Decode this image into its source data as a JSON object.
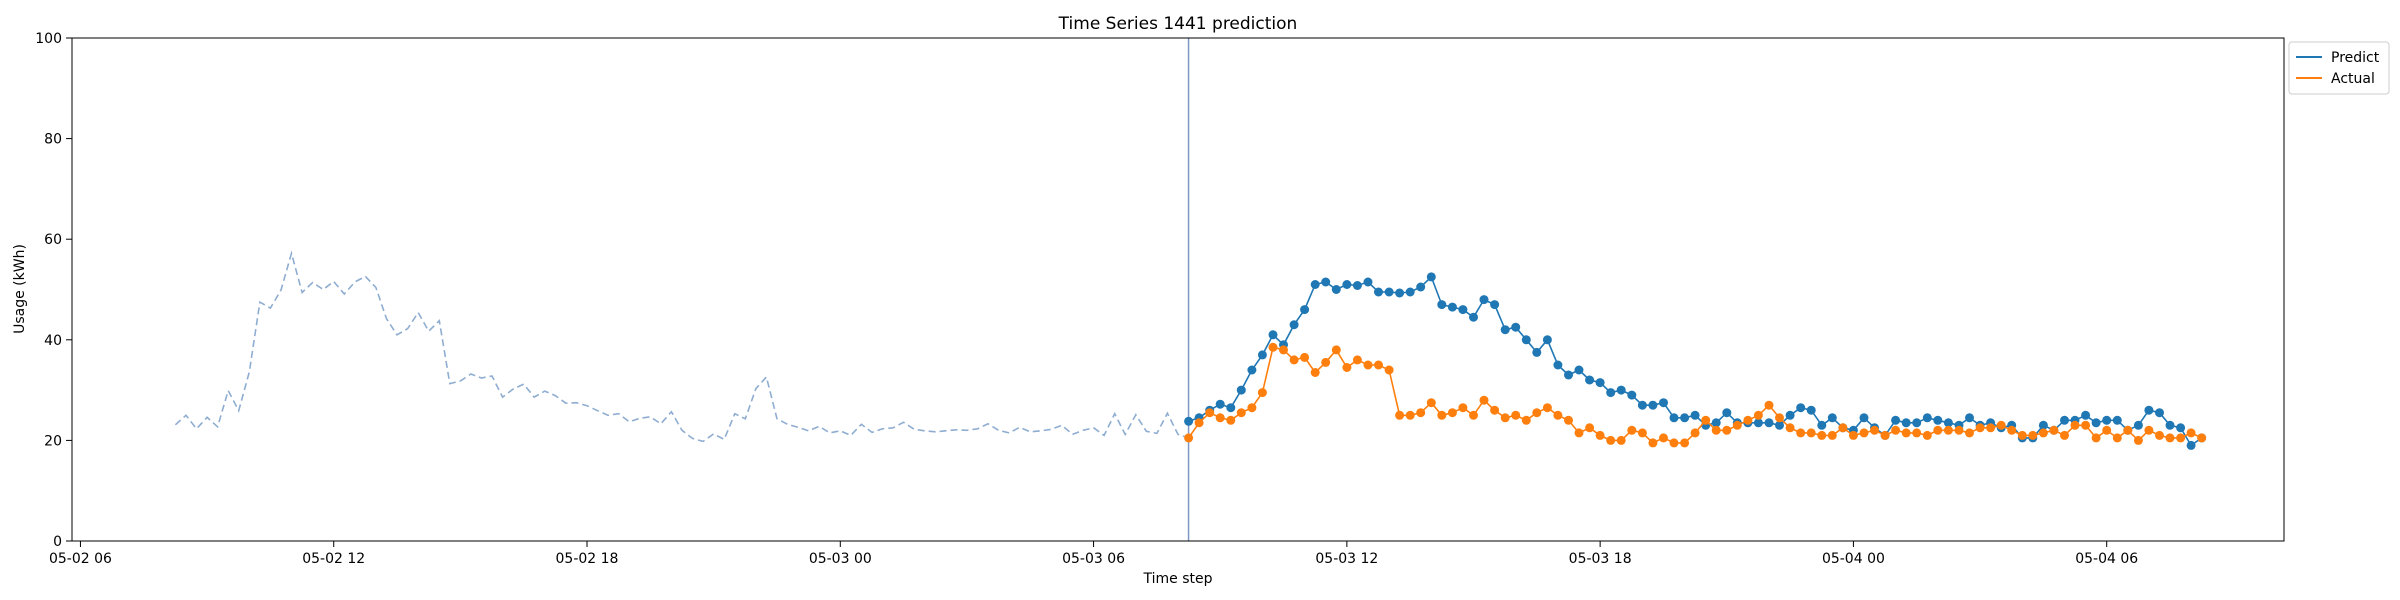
{
  "chart_data": {
    "type": "line",
    "title": "Time Series 1441 prediction",
    "xlabel": "Time step",
    "ylabel": "Usage (kWh)",
    "ylim": [
      0,
      100
    ],
    "xlim": [
      "2025-05-02 05:48",
      "2025-05-04 10:12"
    ],
    "x_ticks": [
      {
        "t": "2025-05-02 06:00",
        "label": "05-02 06"
      },
      {
        "t": "2025-05-02 12:00",
        "label": "05-02 12"
      },
      {
        "t": "2025-05-02 18:00",
        "label": "05-02 18"
      },
      {
        "t": "2025-05-03 00:00",
        "label": "05-03 00"
      },
      {
        "t": "2025-05-03 06:00",
        "label": "05-03 06"
      },
      {
        "t": "2025-05-03 12:00",
        "label": "05-03 12"
      },
      {
        "t": "2025-05-03 18:00",
        "label": "05-03 18"
      },
      {
        "t": "2025-05-04 00:00",
        "label": "05-04 00"
      },
      {
        "t": "2025-05-04 06:00",
        "label": "05-04 06"
      }
    ],
    "y_ticks": [
      0,
      20,
      40,
      60,
      80,
      100
    ],
    "legend_position": "top-right",
    "forecast_start": "2025-05-03 08:15",
    "series": [
      {
        "name": "",
        "style": "dashed",
        "color": "#8fadd1",
        "start": "2025-05-02 08:15",
        "step_minutes": 15,
        "values": [
          23.1,
          25.0,
          22.3,
          24.6,
          22.7,
          29.9,
          25.9,
          33.6,
          47.5,
          46.3,
          49.9,
          57.2,
          49.4,
          51.4,
          50.0,
          51.6,
          49.1,
          51.5,
          52.6,
          50.4,
          44.2,
          41.0,
          42.2,
          45.4,
          41.7,
          43.8,
          31.3,
          31.8,
          33.2,
          32.4,
          32.8,
          28.6,
          30.2,
          31.2,
          28.6,
          29.8,
          28.9,
          27.4,
          27.5,
          26.9,
          25.9,
          25.0,
          25.3,
          23.7,
          24.4,
          24.7,
          23.3,
          25.7,
          22.0,
          20.4,
          19.8,
          21.3,
          20.2,
          25.3,
          24.3,
          30.3,
          32.6,
          24.3,
          23.2,
          22.6,
          21.9,
          22.8,
          21.5,
          21.9,
          21.0,
          23.2,
          21.6,
          22.3,
          22.5,
          23.6,
          22.2,
          21.9,
          21.7,
          21.9,
          22.1,
          22.0,
          22.3,
          23.3,
          22.0,
          21.5,
          22.6,
          21.7,
          21.9,
          22.2,
          23.0,
          21.2,
          22.0,
          22.5,
          21.0,
          25.3,
          21.2,
          25.1,
          21.8,
          21.4,
          25.4,
          21.2,
          20.5
        ]
      },
      {
        "name": "Predict",
        "style": "solid-markers",
        "color": "#1f77b4",
        "start": "2025-05-03 08:15",
        "step_minutes": 15,
        "values": [
          23.8,
          24.5,
          26.0,
          27.2,
          26.5,
          30.0,
          34.0,
          37.0,
          41.0,
          39.0,
          43.0,
          46.0,
          51.0,
          51.5,
          50.0,
          51.0,
          50.8,
          51.5,
          49.5,
          49.5,
          49.3,
          49.5,
          50.5,
          52.5,
          47.0,
          46.5,
          46.0,
          44.5,
          48.0,
          47.0,
          42.0,
          42.5,
          40.0,
          37.5,
          40.0,
          35.0,
          33.0,
          34.0,
          32.0,
          31.5,
          29.5,
          30.0,
          29.0,
          27.0,
          27.0,
          27.5,
          24.5,
          24.5,
          25.0,
          23.0,
          23.5,
          25.5,
          23.5,
          23.5,
          23.5,
          23.5,
          23.0,
          25.0,
          26.5,
          26.0,
          23.0,
          24.5,
          22.5,
          22.0,
          24.5,
          22.5,
          21.0,
          24.0,
          23.5,
          23.5,
          24.5,
          24.0,
          23.5,
          23.0,
          24.5,
          23.0,
          23.5,
          22.5,
          23.0,
          20.5,
          20.5,
          23.0,
          22.0,
          24.0,
          24.0,
          25.0,
          23.5,
          24.0,
          24.0,
          22.0,
          23.0,
          26.0,
          25.5,
          23.0,
          22.5,
          19.0,
          20.5
        ]
      },
      {
        "name": "Actual",
        "style": "solid-markers",
        "color": "#ff7f0e",
        "start": "2025-05-03 08:15",
        "step_minutes": 15,
        "values": [
          20.5,
          23.5,
          25.5,
          24.5,
          24.0,
          25.5,
          26.5,
          29.5,
          38.5,
          38.0,
          36.0,
          36.5,
          33.5,
          35.5,
          38.0,
          34.5,
          36.0,
          35.0,
          35.0,
          34.0,
          25.0,
          25.0,
          25.5,
          27.5,
          25.0,
          25.5,
          26.5,
          25.0,
          28.0,
          26.0,
          24.5,
          25.0,
          24.0,
          25.5,
          26.5,
          25.0,
          24.0,
          21.5,
          22.5,
          21.0,
          20.0,
          20.0,
          22.0,
          21.5,
          19.5,
          20.5,
          19.5,
          19.5,
          21.5,
          24.0,
          22.0,
          22.0,
          23.0,
          24.0,
          25.0,
          27.0,
          24.5,
          22.5,
          21.5,
          21.5,
          21.0,
          21.0,
          22.5,
          21.0,
          21.5,
          22.0,
          21.0,
          22.0,
          21.5,
          21.5,
          21.0,
          22.0,
          22.0,
          22.0,
          21.5,
          22.5,
          22.5,
          23.0,
          22.0,
          21.0,
          21.0,
          21.5,
          22.0,
          21.0,
          23.0,
          23.0,
          20.5,
          22.0,
          20.5,
          22.0,
          20.0,
          22.0,
          21.0,
          20.5,
          20.5,
          21.5,
          20.5
        ]
      }
    ]
  }
}
